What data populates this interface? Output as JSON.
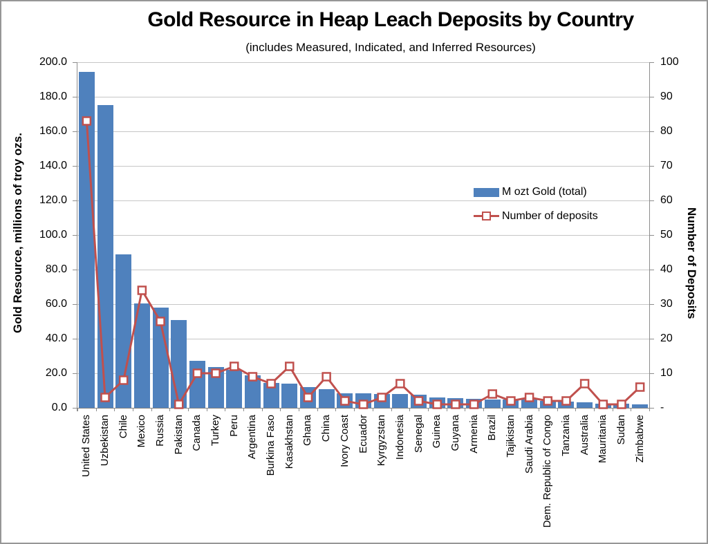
{
  "chart_data": {
    "type": "bar",
    "combo": "bar+line",
    "title": "Gold Resource in Heap Leach Deposits by Country",
    "subtitle": "(includes Measured, Indicated, and Inferred Resources)",
    "categories": [
      "United States",
      "Uzbekistan",
      "Chile",
      "Mexico",
      "Russia",
      "Pakistan",
      "Canada",
      "Turkey",
      "Peru",
      "Argentina",
      "Burkina Faso",
      "Kasakhstan",
      "Ghana",
      "China",
      "Ivory Coast",
      "Ecuador",
      "Kyrgyzstan",
      "Indonesia",
      "Senegal",
      "Guinea",
      "Guyana",
      "Armenia",
      "Brazil",
      "Tajikistan",
      "Saudi Arabia",
      "Dem. Republic of Congo",
      "Tanzania",
      "Australia",
      "Mauritania",
      "Sudan",
      "Zimbabwe"
    ],
    "series": [
      {
        "name": "M ozt Gold (total)",
        "type": "bar",
        "axis": "left",
        "color": "#4F81BD",
        "values": [
          194.5,
          175.4,
          88.7,
          60.4,
          58.2,
          50.9,
          27.3,
          23.5,
          22.2,
          18.8,
          14.6,
          14.2,
          11.9,
          11.0,
          8.6,
          8.4,
          8.2,
          8.0,
          7.5,
          6.0,
          5.6,
          5.3,
          5.0,
          4.9,
          4.8,
          4.0,
          3.6,
          3.3,
          2.6,
          2.4,
          2.2
        ]
      },
      {
        "name": "Number of deposits",
        "type": "line",
        "axis": "right",
        "color": "#C0504D",
        "marker": "open-square",
        "marker_fill": "#FFFFFF",
        "values": [
          83,
          3,
          8,
          34,
          25,
          1,
          10,
          10,
          12,
          9,
          7,
          12,
          3,
          9,
          2,
          1,
          3,
          7,
          2,
          1,
          1,
          1,
          4,
          2,
          3,
          2,
          2,
          7,
          1,
          1,
          6
        ]
      }
    ],
    "left_axis": {
      "title": "Gold Resource, millions of troy ozs.",
      "min": 0,
      "max": 200,
      "step": 20,
      "tick_labels": [
        "200.0",
        "180.0",
        "160.0",
        "140.0",
        "120.0",
        "100.0",
        "80.0",
        "60.0",
        "40.0",
        "20.0",
        "0.0"
      ]
    },
    "right_axis": {
      "title": "Number of Deposits",
      "min": 0,
      "max": 100,
      "step": 10,
      "tick_labels": [
        "100",
        "90",
        "80",
        "70",
        "60",
        "50",
        "40",
        "30",
        "20",
        "10",
        "-"
      ]
    },
    "grid": "horizontal",
    "legend_position": "center-right",
    "colors": {
      "gridline": "#C6C6C6",
      "axis": "#8C8C8C",
      "text": "#000000",
      "background": "#FFFFFF"
    }
  }
}
